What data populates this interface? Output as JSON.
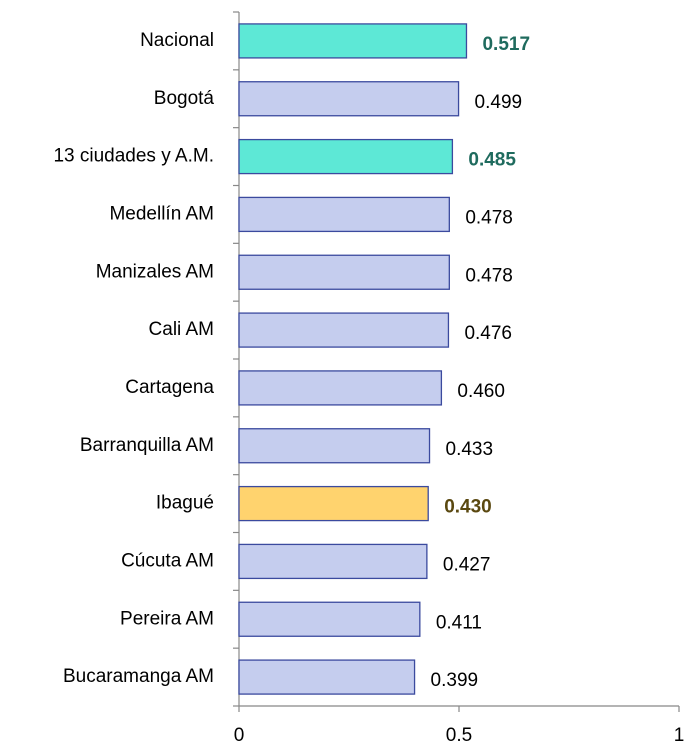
{
  "chart_data": {
    "type": "hbar",
    "categories": [
      "Nacional",
      "Bogotá",
      "13 ciudades y A.M.",
      "Medellín AM",
      "Manizales AM",
      "Cali AM",
      "Cartagena",
      "Barranquilla AM",
      "Ibagué",
      "Cúcuta AM",
      "Pereira AM",
      "Bucaramanga AM"
    ],
    "values": [
      0.517,
      0.499,
      0.485,
      0.478,
      0.478,
      0.476,
      0.46,
      0.433,
      0.43,
      0.427,
      0.411,
      0.399
    ],
    "value_labels": [
      "0.517",
      "0.499",
      "0.485",
      "0.478",
      "0.478",
      "0.476",
      "0.460",
      "0.433",
      "0.430",
      "0.427",
      "0.411",
      "0.399"
    ],
    "colors": [
      "#5de8d6",
      "#c5cdee",
      "#5de8d6",
      "#c5cdee",
      "#c5cdee",
      "#c5cdee",
      "#c5cdee",
      "#c5cdee",
      "#ffd36e",
      "#c5cdee",
      "#c5cdee",
      "#c5cdee"
    ],
    "label_colors": [
      "#1f6b5e",
      "#000000",
      "#1f6b5e",
      "#000000",
      "#000000",
      "#000000",
      "#000000",
      "#000000",
      "#5a4810",
      "#000000",
      "#000000",
      "#000000"
    ],
    "highlight": [
      true,
      false,
      true,
      false,
      false,
      false,
      false,
      false,
      true,
      false,
      false,
      false
    ],
    "xlim": [
      0,
      1
    ],
    "xticks": [
      0,
      0.5,
      1
    ],
    "grid": false
  }
}
